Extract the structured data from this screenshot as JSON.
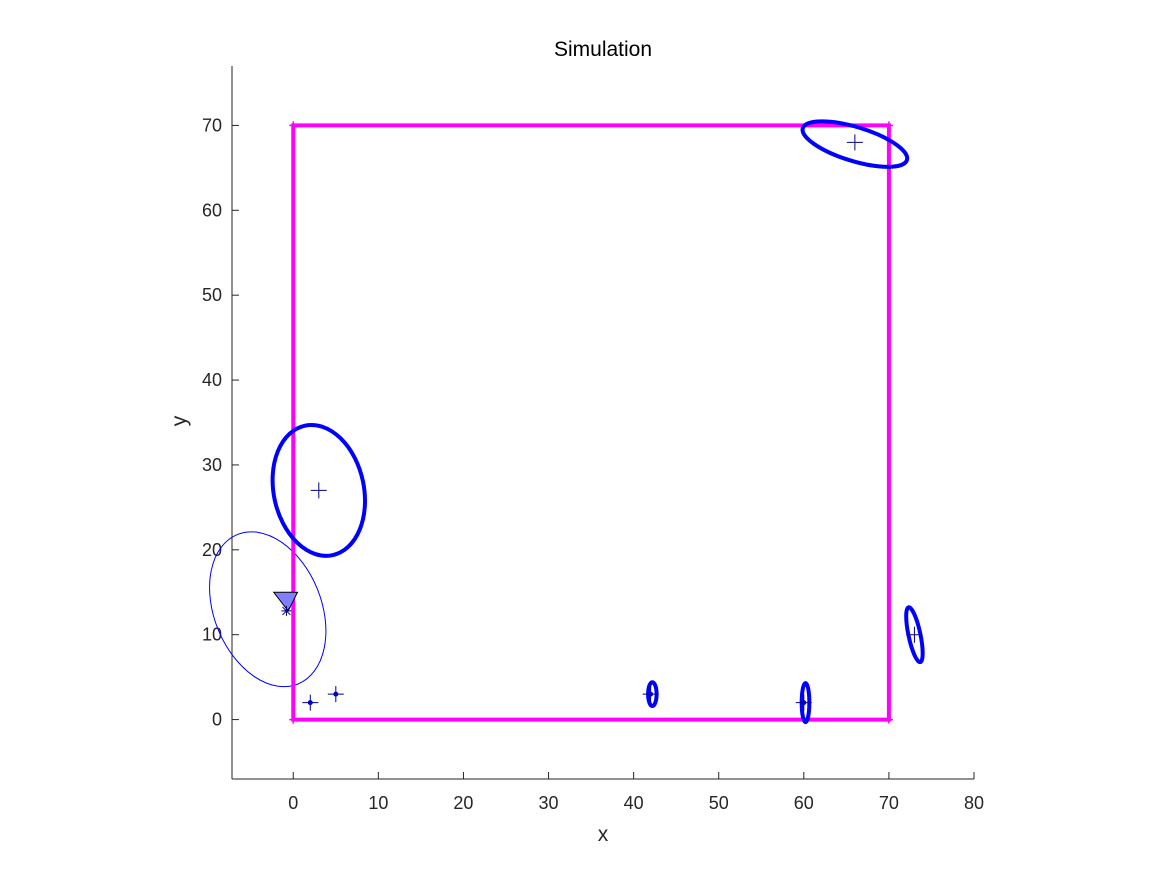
{
  "chart_data": {
    "type": "scatter",
    "title": "Simulation",
    "xlabel": "x",
    "ylabel": "y",
    "xlim": [
      -7.2,
      80
    ],
    "ylim": [
      -7,
      77
    ],
    "xticks": [
      "0",
      "10",
      "20",
      "30",
      "40",
      "50",
      "60",
      "70",
      "80"
    ],
    "yticks": [
      "0",
      "10",
      "20",
      "30",
      "40",
      "50",
      "60",
      "70"
    ],
    "grid": false,
    "legend": "none",
    "boundary": {
      "color": "#ff00ff",
      "corners": [
        [
          0,
          0
        ],
        [
          70,
          0
        ],
        [
          70,
          70
        ],
        [
          0,
          70
        ]
      ]
    },
    "landmarks": {
      "color": "#0000cc",
      "points": [
        [
          2,
          2
        ],
        [
          5,
          3
        ],
        [
          42,
          3
        ],
        [
          60,
          2
        ],
        [
          73,
          10
        ],
        [
          3,
          27
        ],
        [
          66,
          68
        ]
      ]
    },
    "landmark_ellipses": {
      "color": "#0000ff",
      "items": [
        {
          "cx": 3.0,
          "cy": 27.0,
          "rx": 5.3,
          "ry": 7.8,
          "angle": 12
        },
        {
          "cx": 66.0,
          "cy": 67.8,
          "rx": 6.4,
          "ry": 2.0,
          "angle": -17
        },
        {
          "cx": 73.0,
          "cy": 10.0,
          "rx": 0.7,
          "ry": 3.3,
          "angle": 12
        },
        {
          "cx": 42.2,
          "cy": 3.0,
          "rx": 0.5,
          "ry": 1.4,
          "angle": 0
        },
        {
          "cx": 60.2,
          "cy": 2.0,
          "rx": 0.45,
          "ry": 2.3,
          "angle": 0
        }
      ]
    },
    "robot": {
      "color": "#8080ff",
      "position": [
        -0.8,
        12.8
      ],
      "triangle": [
        [
          -2.3,
          15.0
        ],
        [
          0.5,
          15.0
        ],
        [
          -0.6,
          12.8
        ]
      ],
      "ellipse": {
        "cx": -3.0,
        "cy": 13.0,
        "rx": 6.3,
        "ry": 9.5,
        "angle": 22
      }
    }
  }
}
